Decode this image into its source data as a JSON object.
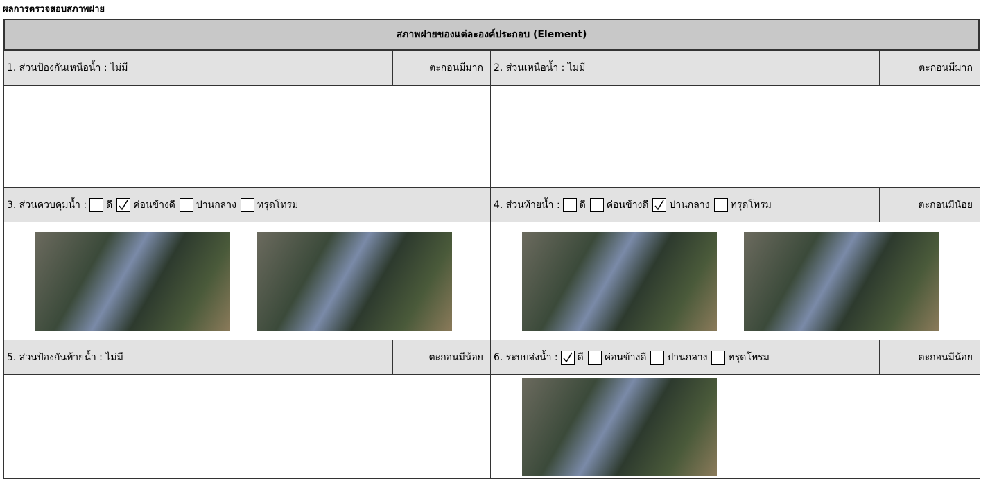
{
  "title": "ผลการตรวจสอบสภาพฝาย",
  "table": {
    "heading": "สภาพฝายของแต่ละองค์ประกอบ (Element)",
    "sections": [
      {
        "label": "1. ส่วนป้องกันเหนือน้ำ : ไม่มี",
        "status": "ตะกอนมีมาก",
        "photos": 0
      },
      {
        "label": "2. ส่วนเหนือน้ำ : ไม่มี",
        "status": "ตะกอนมีมาก",
        "photos": 0
      },
      {
        "label": "3. ส่วนควบคุมน้ำ :",
        "options": [
          {
            "text": "ดี",
            "checked": false
          },
          {
            "text": "ค่อนข้างดี",
            "checked": true
          },
          {
            "text": "ปานกลาง",
            "checked": false
          },
          {
            "text": "ทรุดโทรม",
            "checked": false
          }
        ],
        "photos": 2
      },
      {
        "label": "4. ส่วนท้ายน้ำ :",
        "options": [
          {
            "text": "ดี",
            "checked": false
          },
          {
            "text": "ค่อนข้างดี",
            "checked": false
          },
          {
            "text": "ปานกลาง",
            "checked": true
          },
          {
            "text": "ทรุดโทรม",
            "checked": false
          }
        ],
        "status": "ตะกอนมีน้อย",
        "photos": 2
      },
      {
        "label": "5. ส่วนป้องกันท้ายน้ำ : ไม่มี",
        "status": "ตะกอนมีน้อย",
        "photos": 0
      },
      {
        "label": "6. ระบบส่งน้ำ :",
        "options": [
          {
            "text": "ดี",
            "checked": true
          },
          {
            "text": "ค่อนข้างดี",
            "checked": false
          },
          {
            "text": "ปานกลาง",
            "checked": false
          },
          {
            "text": "ทรุดโทรม",
            "checked": false
          }
        ],
        "status": "ตะกอนมีน้อย",
        "photos": 1
      }
    ]
  }
}
